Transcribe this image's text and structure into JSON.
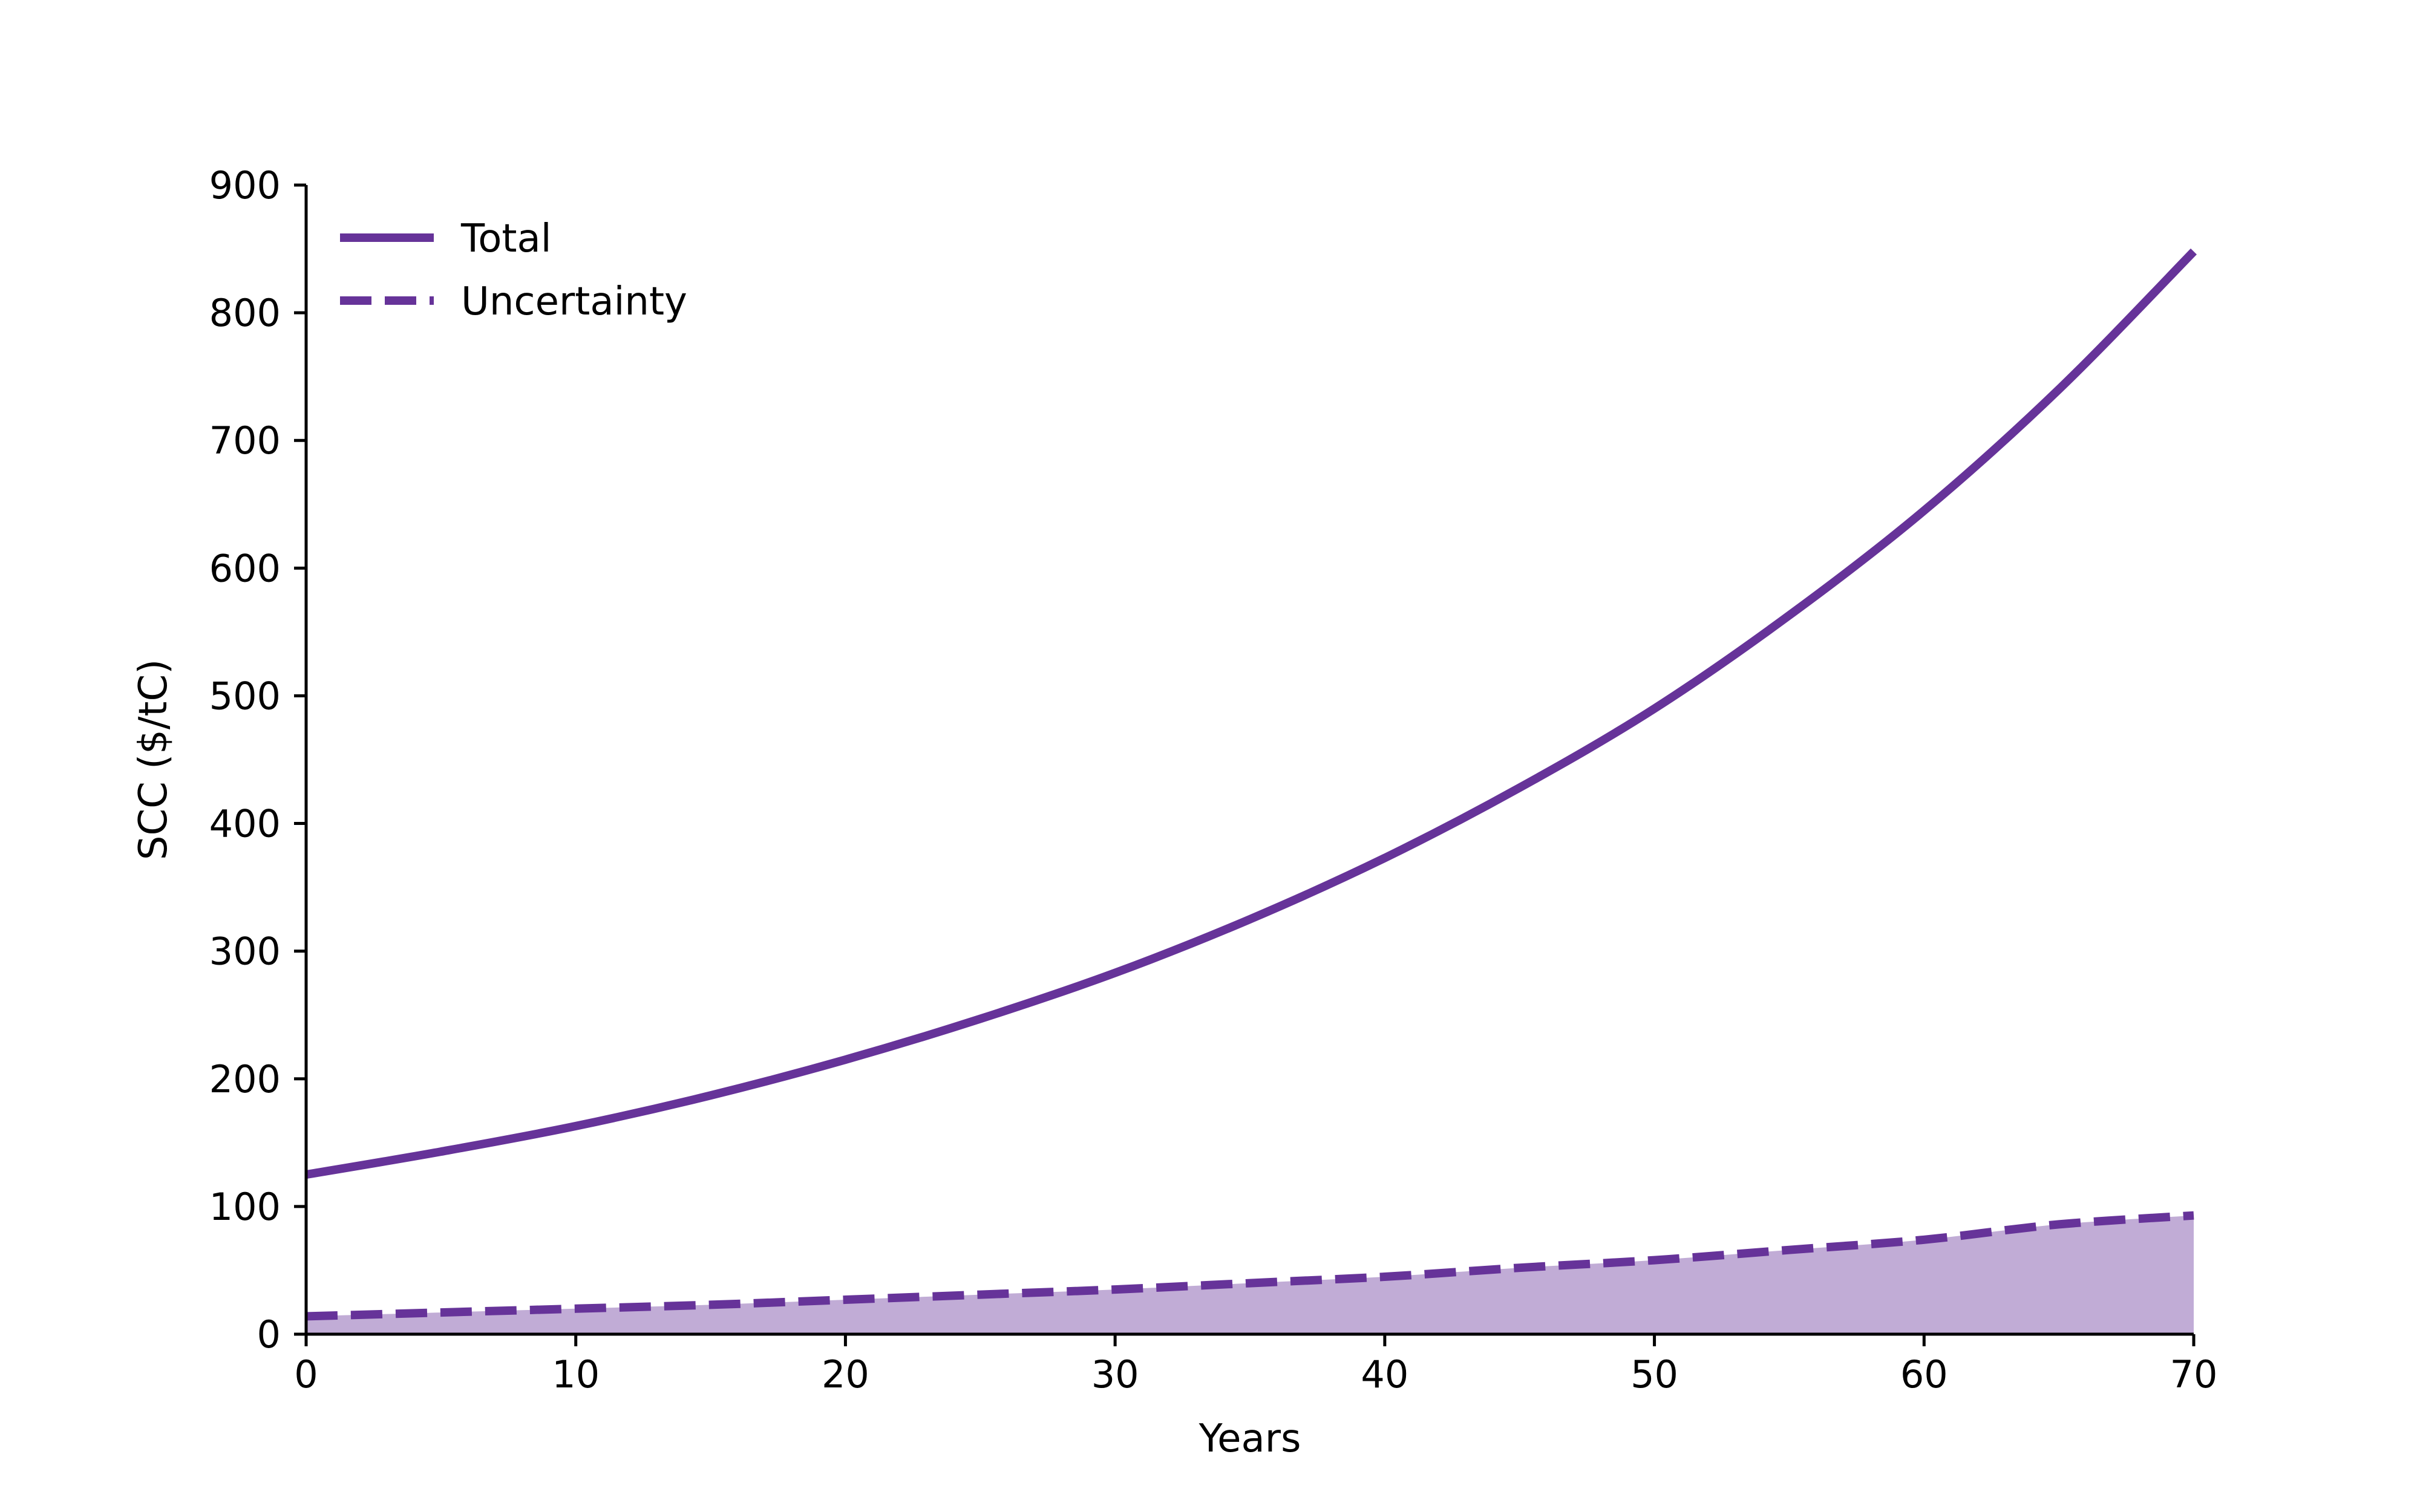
{
  "chart_data": {
    "type": "line",
    "title": "",
    "xlabel": "Years",
    "ylabel": "SCC ($/tC)",
    "xlim": [
      0,
      70
    ],
    "ylim": [
      0,
      900
    ],
    "xticks": [
      0,
      10,
      20,
      30,
      40,
      50,
      60,
      70
    ],
    "yticks": [
      0,
      100,
      200,
      300,
      400,
      500,
      600,
      700,
      800,
      900
    ],
    "grid": false,
    "legend_position": "top-left",
    "x": [
      0,
      5,
      10,
      15,
      20,
      25,
      30,
      35,
      40,
      45,
      50,
      55,
      60,
      65,
      70
    ],
    "series": [
      {
        "name": "Total",
        "style": "solid",
        "color": "#663399",
        "values": [
          125,
          143,
          163,
          187,
          215,
          247,
          283,
          325,
          373,
          428,
          490,
          563,
          645,
          740,
          848
        ]
      },
      {
        "name": "Uncertainty",
        "style": "dashed",
        "color": "#663399",
        "fill": "#c1acd6",
        "values": [
          14,
          17,
          20,
          23,
          27,
          31,
          35,
          40,
          45,
          52,
          58,
          66,
          74,
          86,
          93
        ]
      }
    ]
  }
}
